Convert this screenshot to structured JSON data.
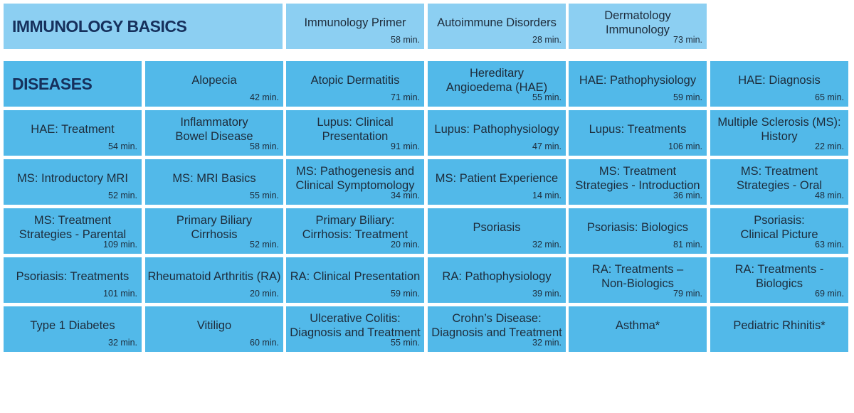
{
  "header": {
    "title": "IMMUNOLOGY BASICS",
    "courses": [
      {
        "title": "Immunology Primer",
        "duration": "58 min."
      },
      {
        "title": "Autoimmune Disorders",
        "duration": "28 min."
      },
      {
        "title": "Dermatology\nImmunology",
        "duration": "73 min."
      }
    ]
  },
  "diseases": {
    "title": "DISEASES",
    "courses": [
      {
        "title": "Alopecia",
        "duration": "42 min."
      },
      {
        "title": "Atopic Dermatitis",
        "duration": "71 min."
      },
      {
        "title": "Hereditary\nAngioedema (HAE)",
        "duration": "55 min."
      },
      {
        "title": "HAE: Pathophysiology",
        "duration": "59 min."
      },
      {
        "title": "HAE: Diagnosis",
        "duration": "65 min."
      },
      {
        "title": "HAE: Treatment",
        "duration": "54 min."
      },
      {
        "title": "Inflammatory\nBowel Disease",
        "duration": "58 min."
      },
      {
        "title": "Lupus: Clinical\nPresentation",
        "duration": "91 min."
      },
      {
        "title": "Lupus: Pathophysiology",
        "duration": "47 min."
      },
      {
        "title": "Lupus: Treatments",
        "duration": "106 min."
      },
      {
        "title": "Multiple Sclerosis (MS):\nHistory",
        "duration": "22 min."
      },
      {
        "title": "MS: Introductory MRI",
        "duration": "52 min."
      },
      {
        "title": "MS: MRI Basics",
        "duration": "55 min."
      },
      {
        "title": "MS: Pathogenesis and\nClinical Symptomology",
        "duration": "34 min."
      },
      {
        "title": "MS: Patient Experience",
        "duration": "14 min."
      },
      {
        "title": "MS: Treatment\nStrategies - Introduction",
        "duration": "36 min."
      },
      {
        "title": "MS: Treatment\nStrategies - Oral",
        "duration": "48 min."
      },
      {
        "title": "MS: Treatment\nStrategies - Parental",
        "duration": "109 min."
      },
      {
        "title": "Primary Biliary\nCirrhosis",
        "duration": "52 min."
      },
      {
        "title": "Primary Biliary:\nCirrhosis: Treatment",
        "duration": "20 min."
      },
      {
        "title": "Psoriasis",
        "duration": "32 min."
      },
      {
        "title": "Psoriasis: Biologics",
        "duration": "81 min."
      },
      {
        "title": "Psoriasis:\nClinical Picture",
        "duration": "63 min."
      },
      {
        "title": "Psoriasis: Treatments",
        "duration": "101 min."
      },
      {
        "title": "Rheumatoid Arthritis (RA)",
        "duration": "20 min."
      },
      {
        "title": "RA: Clinical Presentation",
        "duration": "59 min."
      },
      {
        "title": "RA: Pathophysiology",
        "duration": "39 min."
      },
      {
        "title": "RA: Treatments –\nNon-Biologics",
        "duration": "79 min."
      },
      {
        "title": "RA: Treatments -\nBiologics",
        "duration": "69 min."
      },
      {
        "title": "Type 1 Diabetes",
        "duration": "32 min."
      },
      {
        "title": "Vitiligo",
        "duration": "60 min."
      },
      {
        "title": "Ulcerative Colitis:\nDiagnosis and Treatment",
        "duration": "55 min."
      },
      {
        "title": "Crohn’s Disease:\nDiagnosis and Treatment",
        "duration": "32 min."
      },
      {
        "title": "Asthma*"
      },
      {
        "title": "Pediatric Rhinitis*"
      }
    ]
  }
}
